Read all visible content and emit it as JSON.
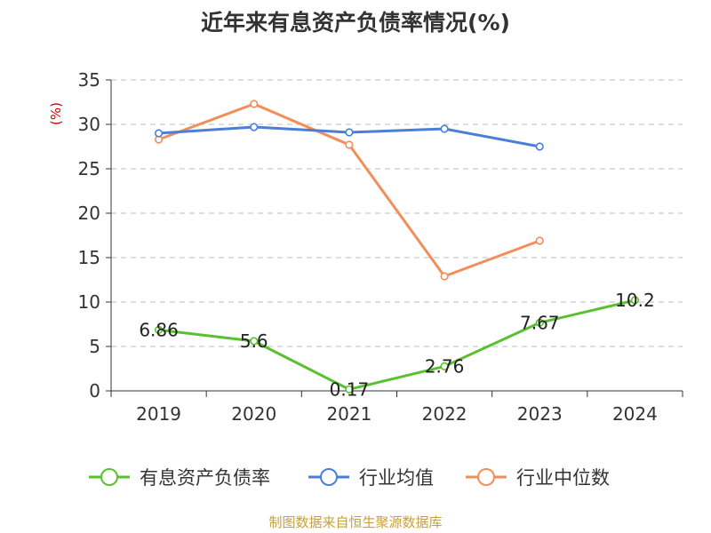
{
  "chart_data": {
    "type": "line",
    "title": "近年来有息资产负债率情况(%)",
    "unit_label": "(%)",
    "categories": [
      "2019",
      "2020",
      "2021",
      "2022",
      "2023",
      "2024"
    ],
    "ylim": [
      0,
      35
    ],
    "yticks": [
      0,
      5,
      10,
      15,
      20,
      25,
      30,
      35
    ],
    "grid": true,
    "legend_position": "bottom",
    "series": [
      {
        "name": "有息资产负债率",
        "color": "#5ac12e",
        "values": [
          6.86,
          5.6,
          0.17,
          2.76,
          7.67,
          10.2
        ],
        "labels": [
          "6.86",
          "5.6",
          "0.17",
          "2.76",
          "7.67",
          "10.2"
        ]
      },
      {
        "name": "行业均值",
        "color": "#4a7fd8",
        "values": [
          29.0,
          29.7,
          29.1,
          29.5,
          27.5,
          null
        ]
      },
      {
        "name": "行业中位数",
        "color": "#f28e5a",
        "values": [
          28.3,
          32.3,
          27.7,
          12.9,
          16.9,
          null
        ]
      }
    ],
    "source": "制图数据来自恒生聚源数据库"
  }
}
